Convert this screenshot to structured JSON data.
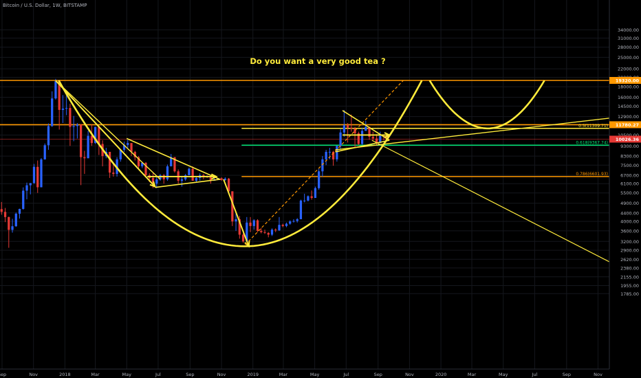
{
  "header": {
    "symbol_title": "Bitcoin / U.S. Dollar, 1W, BITSTAMP"
  },
  "annotation": {
    "headline": "Do you want a very good tea ?"
  },
  "colors": {
    "background": "#000000",
    "up_candle": "#2962ff",
    "down_candle": "#e53935",
    "annotation": "#ffeb3b",
    "orange_level": "#ff9800",
    "green_level": "#00e676",
    "yellow_level": "#ffeb3b",
    "axis_text": "#b2b5be"
  },
  "chart_data": {
    "type": "candlestick",
    "symbol": "BTCUSD",
    "interval": "1W",
    "exchange": "BITSTAMP",
    "y_scale": "log",
    "ylim": [
      1700,
      36000
    ],
    "xlim": [
      "2017-08-28",
      "2020-11-23"
    ],
    "y_ticks": [
      "34000.00",
      "31000.00",
      "28000.00",
      "25000.00",
      "22000.00",
      "20000.00",
      "18000.00",
      "16000.00",
      "14500.00",
      "12900.00",
      "11700.00",
      "10500.00",
      "9300.00",
      "8300.00",
      "7500.00",
      "6700.00",
      "6100.00",
      "5500.00",
      "4900.00",
      "4400.00",
      "4000.00",
      "3600.00",
      "3200.00",
      "2900.00",
      "2620.00",
      "2380.00",
      "2155.00",
      "1955.00",
      "1785.00"
    ],
    "x_ticks": [
      {
        "label": "Sep",
        "date": "2017-09-01"
      },
      {
        "label": "Nov",
        "date": "2017-11-01"
      },
      {
        "label": "2018",
        "date": "2018-01-01"
      },
      {
        "label": "Mar",
        "date": "2018-03-01"
      },
      {
        "label": "May",
        "date": "2018-05-01"
      },
      {
        "label": "Jul",
        "date": "2018-07-01"
      },
      {
        "label": "Sep",
        "date": "2018-09-01"
      },
      {
        "label": "Nov",
        "date": "2018-11-01"
      },
      {
        "label": "2019",
        "date": "2019-01-01"
      },
      {
        "label": "Mar",
        "date": "2019-03-01"
      },
      {
        "label": "May",
        "date": "2019-05-01"
      },
      {
        "label": "Jul",
        "date": "2019-07-01"
      },
      {
        "label": "Sep",
        "date": "2019-09-01"
      },
      {
        "label": "Nov",
        "date": "2019-11-01"
      },
      {
        "label": "2020",
        "date": "2020-01-01"
      },
      {
        "label": "Mar",
        "date": "2020-03-01"
      },
      {
        "label": "May",
        "date": "2020-05-01"
      },
      {
        "label": "Jul",
        "date": "2020-07-01"
      },
      {
        "label": "Sep",
        "date": "2020-09-01"
      },
      {
        "label": "Nov",
        "date": "2020-11-01"
      }
    ],
    "price_badges": [
      {
        "label": "19320.00",
        "value": 19320,
        "color": "#ff9800"
      },
      {
        "label": "11780.27",
        "value": 11780,
        "color": "#ff9800"
      },
      {
        "label": "10026.36",
        "value": 10026,
        "color": "#e53935"
      }
    ],
    "fib_levels": [
      {
        "label": "0.5(11309.71)",
        "value": 11309.71,
        "color": "#ffeb3b",
        "start": "2018-12-10"
      },
      {
        "label": "0.618(9367.74)",
        "value": 9367.74,
        "color": "#00e676",
        "start": "2018-12-10"
      },
      {
        "label": "0.786(6601.93)",
        "value": 6601.93,
        "color": "#ff9800",
        "start": "2018-12-10"
      }
    ],
    "horizontal_levels": [
      {
        "value": 19320,
        "color": "#ff9800"
      },
      {
        "value": 11780,
        "color": "#ff9800"
      },
      {
        "value": 10026,
        "color": "#e53935"
      }
    ],
    "candles": [
      {
        "d": "2017-08-28",
        "o": 4590,
        "h": 4970,
        "l": 4310,
        "c": 4450
      },
      {
        "d": "2017-09-04",
        "o": 4450,
        "h": 4650,
        "l": 3970,
        "c": 4200
      },
      {
        "d": "2017-09-11",
        "o": 4200,
        "h": 4220,
        "l": 2980,
        "c": 3640
      },
      {
        "d": "2017-09-18",
        "o": 3640,
        "h": 4120,
        "l": 3530,
        "c": 3790
      },
      {
        "d": "2017-09-25",
        "o": 3790,
        "h": 4420,
        "l": 3770,
        "c": 4360
      },
      {
        "d": "2017-10-02",
        "o": 4360,
        "h": 4610,
        "l": 4130,
        "c": 4600
      },
      {
        "d": "2017-10-09",
        "o": 4600,
        "h": 5850,
        "l": 4560,
        "c": 5640
      },
      {
        "d": "2017-10-16",
        "o": 5640,
        "h": 6170,
        "l": 5120,
        "c": 5990
      },
      {
        "d": "2017-10-23",
        "o": 5990,
        "h": 6140,
        "l": 5410,
        "c": 6140
      },
      {
        "d": "2017-10-30",
        "o": 6140,
        "h": 7600,
        "l": 6090,
        "c": 7360
      },
      {
        "d": "2017-11-06",
        "o": 7360,
        "h": 7900,
        "l": 5500,
        "c": 5860
      },
      {
        "d": "2017-11-13",
        "o": 5860,
        "h": 8120,
        "l": 5850,
        "c": 8000
      },
      {
        "d": "2017-11-20",
        "o": 8000,
        "h": 9550,
        "l": 7970,
        "c": 9370
      },
      {
        "d": "2017-11-27",
        "o": 9370,
        "h": 11950,
        "l": 8900,
        "c": 11600
      },
      {
        "d": "2017-12-04",
        "o": 11600,
        "h": 17100,
        "l": 11500,
        "c": 15800
      },
      {
        "d": "2017-12-11",
        "o": 15800,
        "h": 19660,
        "l": 15600,
        "c": 19150
      },
      {
        "d": "2017-12-18",
        "o": 19150,
        "h": 19200,
        "l": 11160,
        "c": 13900
      },
      {
        "d": "2017-12-25",
        "o": 13900,
        "h": 16400,
        "l": 12000,
        "c": 14100
      },
      {
        "d": "2018-01-01",
        "o": 14100,
        "h": 17200,
        "l": 13100,
        "c": 14200
      },
      {
        "d": "2018-01-08",
        "o": 14200,
        "h": 14900,
        "l": 9300,
        "c": 11500
      },
      {
        "d": "2018-01-15",
        "o": 11500,
        "h": 13000,
        "l": 9800,
        "c": 11600
      },
      {
        "d": "2018-01-22",
        "o": 11600,
        "h": 12000,
        "l": 10100,
        "c": 11800
      },
      {
        "d": "2018-01-29",
        "o": 11800,
        "h": 11800,
        "l": 6000,
        "c": 8200
      },
      {
        "d": "2018-02-05",
        "o": 8200,
        "h": 8800,
        "l": 6800,
        "c": 8100
      },
      {
        "d": "2018-02-12",
        "o": 8100,
        "h": 11000,
        "l": 8100,
        "c": 10400
      },
      {
        "d": "2018-02-19",
        "o": 10400,
        "h": 11800,
        "l": 9300,
        "c": 9600
      },
      {
        "d": "2018-02-26",
        "o": 9600,
        "h": 11500,
        "l": 9500,
        "c": 11500
      },
      {
        "d": "2018-03-05",
        "o": 11500,
        "h": 11700,
        "l": 8400,
        "c": 9500
      },
      {
        "d": "2018-03-12",
        "o": 9500,
        "h": 9900,
        "l": 7400,
        "c": 8300
      },
      {
        "d": "2018-03-19",
        "o": 8300,
        "h": 9100,
        "l": 8100,
        "c": 8700
      },
      {
        "d": "2018-03-26",
        "o": 8700,
        "h": 8700,
        "l": 6500,
        "c": 6900
      },
      {
        "d": "2018-04-02",
        "o": 6900,
        "h": 7600,
        "l": 6600,
        "c": 6800
      },
      {
        "d": "2018-04-09",
        "o": 6800,
        "h": 8200,
        "l": 6600,
        "c": 8000
      },
      {
        "d": "2018-04-16",
        "o": 8000,
        "h": 8900,
        "l": 7800,
        "c": 8900
      },
      {
        "d": "2018-04-23",
        "o": 8900,
        "h": 9750,
        "l": 8700,
        "c": 9400
      },
      {
        "d": "2018-04-30",
        "o": 9400,
        "h": 9950,
        "l": 9100,
        "c": 9600
      },
      {
        "d": "2018-05-07",
        "o": 9600,
        "h": 9600,
        "l": 8300,
        "c": 8700
      },
      {
        "d": "2018-05-14",
        "o": 8700,
        "h": 8800,
        "l": 7900,
        "c": 8200
      },
      {
        "d": "2018-05-21",
        "o": 8200,
        "h": 8300,
        "l": 7100,
        "c": 7400
      },
      {
        "d": "2018-05-28",
        "o": 7400,
        "h": 7750,
        "l": 7250,
        "c": 7700
      },
      {
        "d": "2018-06-04",
        "o": 7700,
        "h": 7750,
        "l": 6600,
        "c": 6700
      },
      {
        "d": "2018-06-11",
        "o": 6700,
        "h": 6850,
        "l": 6200,
        "c": 6500
      },
      {
        "d": "2018-06-18",
        "o": 6500,
        "h": 6850,
        "l": 5800,
        "c": 6100
      },
      {
        "d": "2018-06-25",
        "o": 6100,
        "h": 6550,
        "l": 5800,
        "c": 6400
      },
      {
        "d": "2018-07-02",
        "o": 6400,
        "h": 6800,
        "l": 6300,
        "c": 6700
      },
      {
        "d": "2018-07-09",
        "o": 6700,
        "h": 6800,
        "l": 6100,
        "c": 6400
      },
      {
        "d": "2018-07-16",
        "o": 6400,
        "h": 7550,
        "l": 6300,
        "c": 7400
      },
      {
        "d": "2018-07-23",
        "o": 7400,
        "h": 8500,
        "l": 7400,
        "c": 8200
      },
      {
        "d": "2018-07-30",
        "o": 8200,
        "h": 8200,
        "l": 6900,
        "c": 7000
      },
      {
        "d": "2018-08-06",
        "o": 7000,
        "h": 7150,
        "l": 6100,
        "c": 6300
      },
      {
        "d": "2018-08-13",
        "o": 6300,
        "h": 6600,
        "l": 5900,
        "c": 6400
      },
      {
        "d": "2018-08-20",
        "o": 6400,
        "h": 6800,
        "l": 6300,
        "c": 6700
      },
      {
        "d": "2018-08-27",
        "o": 6700,
        "h": 7300,
        "l": 6700,
        "c": 7200
      },
      {
        "d": "2018-09-03",
        "o": 7200,
        "h": 7400,
        "l": 6300,
        "c": 6300
      },
      {
        "d": "2018-09-10",
        "o": 6300,
        "h": 6550,
        "l": 6200,
        "c": 6500
      },
      {
        "d": "2018-09-17",
        "o": 6500,
        "h": 6850,
        "l": 6300,
        "c": 6700
      },
      {
        "d": "2018-09-24",
        "o": 6700,
        "h": 6800,
        "l": 6400,
        "c": 6600
      },
      {
        "d": "2018-10-01",
        "o": 6600,
        "h": 6700,
        "l": 6500,
        "c": 6550
      },
      {
        "d": "2018-10-08",
        "o": 6550,
        "h": 6600,
        "l": 6100,
        "c": 6300
      },
      {
        "d": "2018-10-15",
        "o": 6300,
        "h": 6550,
        "l": 6300,
        "c": 6400
      },
      {
        "d": "2018-10-22",
        "o": 6400,
        "h": 6500,
        "l": 6350,
        "c": 6480
      },
      {
        "d": "2018-10-29",
        "o": 6480,
        "h": 6550,
        "l": 6300,
        "c": 6350
      },
      {
        "d": "2018-11-05",
        "o": 6350,
        "h": 6550,
        "l": 6300,
        "c": 6450
      },
      {
        "d": "2018-11-12",
        "o": 6450,
        "h": 6500,
        "l": 5500,
        "c": 5600
      },
      {
        "d": "2018-11-19",
        "o": 5600,
        "h": 5600,
        "l": 3800,
        "c": 4000
      },
      {
        "d": "2018-11-26",
        "o": 4000,
        "h": 4400,
        "l": 3600,
        "c": 4100
      },
      {
        "d": "2018-12-03",
        "o": 4100,
        "h": 4250,
        "l": 3300,
        "c": 3450
      },
      {
        "d": "2018-12-10",
        "o": 3450,
        "h": 3500,
        "l": 3150,
        "c": 3200
      },
      {
        "d": "2018-12-17",
        "o": 3200,
        "h": 4200,
        "l": 3200,
        "c": 3950
      },
      {
        "d": "2018-12-24",
        "o": 3950,
        "h": 4200,
        "l": 3550,
        "c": 3800
      },
      {
        "d": "2018-12-31",
        "o": 3800,
        "h": 4100,
        "l": 3650,
        "c": 4050
      },
      {
        "d": "2019-01-07",
        "o": 4050,
        "h": 4100,
        "l": 3550,
        "c": 3600
      },
      {
        "d": "2019-01-14",
        "o": 3600,
        "h": 3720,
        "l": 3500,
        "c": 3550
      },
      {
        "d": "2019-01-21",
        "o": 3550,
        "h": 3650,
        "l": 3480,
        "c": 3520
      },
      {
        "d": "2019-01-28",
        "o": 3520,
        "h": 3550,
        "l": 3350,
        "c": 3450
      },
      {
        "d": "2019-02-04",
        "o": 3450,
        "h": 3700,
        "l": 3400,
        "c": 3650
      },
      {
        "d": "2019-02-11",
        "o": 3650,
        "h": 3700,
        "l": 3550,
        "c": 3620
      },
      {
        "d": "2019-02-18",
        "o": 3620,
        "h": 4200,
        "l": 3600,
        "c": 3850
      },
      {
        "d": "2019-02-25",
        "o": 3850,
        "h": 3900,
        "l": 3750,
        "c": 3800
      },
      {
        "d": "2019-03-04",
        "o": 3800,
        "h": 3950,
        "l": 3750,
        "c": 3900
      },
      {
        "d": "2019-03-11",
        "o": 3900,
        "h": 4050,
        "l": 3850,
        "c": 4000
      },
      {
        "d": "2019-03-18",
        "o": 4000,
        "h": 4100,
        "l": 3950,
        "c": 4020
      },
      {
        "d": "2019-03-25",
        "o": 4020,
        "h": 4150,
        "l": 3950,
        "c": 4100
      },
      {
        "d": "2019-04-01",
        "o": 4100,
        "h": 5100,
        "l": 4100,
        "c": 5050
      },
      {
        "d": "2019-04-08",
        "o": 5050,
        "h": 5450,
        "l": 4950,
        "c": 5050
      },
      {
        "d": "2019-04-15",
        "o": 5050,
        "h": 5350,
        "l": 5000,
        "c": 5300
      },
      {
        "d": "2019-04-22",
        "o": 5300,
        "h": 5650,
        "l": 5100,
        "c": 5200
      },
      {
        "d": "2019-04-29",
        "o": 5200,
        "h": 5900,
        "l": 5200,
        "c": 5800
      },
      {
        "d": "2019-05-06",
        "o": 5800,
        "h": 7200,
        "l": 5700,
        "c": 7000
      },
      {
        "d": "2019-05-13",
        "o": 7000,
        "h": 8300,
        "l": 6600,
        "c": 8000
      },
      {
        "d": "2019-05-20",
        "o": 8000,
        "h": 8900,
        "l": 7500,
        "c": 8700
      },
      {
        "d": "2019-05-27",
        "o": 8700,
        "h": 9100,
        "l": 8000,
        "c": 8700
      },
      {
        "d": "2019-06-03",
        "o": 8700,
        "h": 8800,
        "l": 7450,
        "c": 8000
      },
      {
        "d": "2019-06-10",
        "o": 8000,
        "h": 9300,
        "l": 7800,
        "c": 9300
      },
      {
        "d": "2019-06-17",
        "o": 9300,
        "h": 11200,
        "l": 9000,
        "c": 10800
      },
      {
        "d": "2019-06-24",
        "o": 10800,
        "h": 13880,
        "l": 10300,
        "c": 11700
      },
      {
        "d": "2019-07-01",
        "o": 11700,
        "h": 12000,
        "l": 9650,
        "c": 11400
      },
      {
        "d": "2019-07-08",
        "o": 11400,
        "h": 13200,
        "l": 10900,
        "c": 11300
      },
      {
        "d": "2019-07-15",
        "o": 11300,
        "h": 11500,
        "l": 9100,
        "c": 10700
      },
      {
        "d": "2019-07-22",
        "o": 10700,
        "h": 10900,
        "l": 9400,
        "c": 9500
      },
      {
        "d": "2019-07-29",
        "o": 9500,
        "h": 11400,
        "l": 9400,
        "c": 11000
      },
      {
        "d": "2019-08-05",
        "o": 11000,
        "h": 12300,
        "l": 11000,
        "c": 11500
      },
      {
        "d": "2019-08-12",
        "o": 11500,
        "h": 11500,
        "l": 9950,
        "c": 10300
      },
      {
        "d": "2019-08-19",
        "o": 10300,
        "h": 10900,
        "l": 9900,
        "c": 10100
      },
      {
        "d": "2019-08-26",
        "o": 10100,
        "h": 10600,
        "l": 9350,
        "c": 9600
      },
      {
        "d": "2019-09-02",
        "o": 9600,
        "h": 10900,
        "l": 9600,
        "c": 10400
      },
      {
        "d": "2019-09-09",
        "o": 10400,
        "h": 10450,
        "l": 9900,
        "c": 10300
      },
      {
        "d": "2019-09-16",
        "o": 10300,
        "h": 10400,
        "l": 10026,
        "c": 10026
      }
    ]
  }
}
